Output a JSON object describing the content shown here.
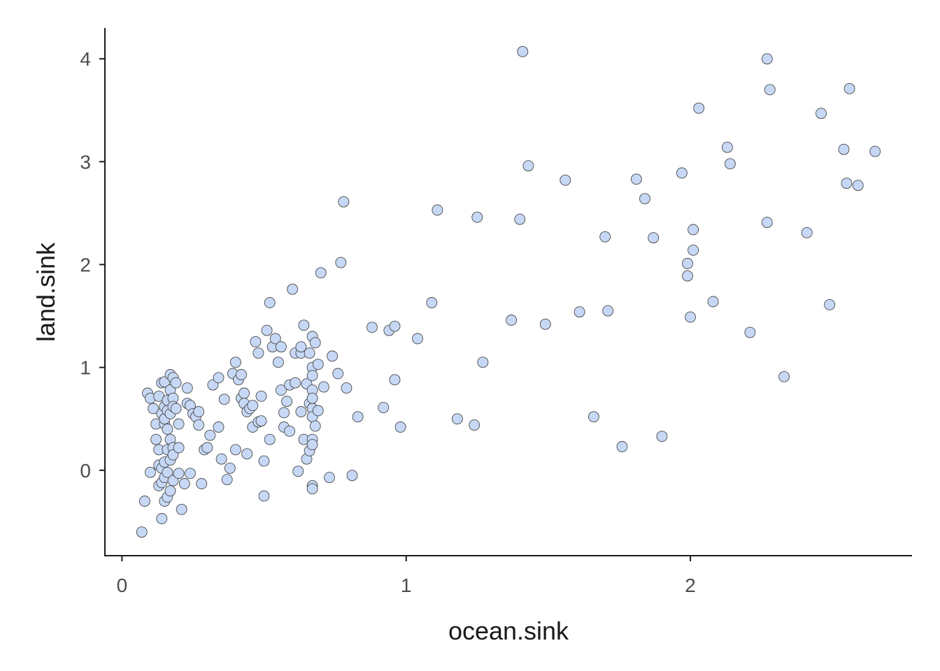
{
  "chart_data": {
    "type": "scatter",
    "title": "",
    "xlabel": "ocean.sink",
    "ylabel": "land.sink",
    "xlim": [
      -0.06,
      2.78
    ],
    "ylim": [
      -0.83,
      4.3
    ],
    "xticks": [
      0,
      1,
      2
    ],
    "yticks": [
      0,
      1,
      2,
      3,
      4
    ],
    "grid": false,
    "point_color": "#c6d8f5",
    "point_stroke": "#4a4a4a",
    "axis_color": "#1a1a1a",
    "points": [
      [
        0.07,
        -0.6
      ],
      [
        0.08,
        -0.3
      ],
      [
        0.09,
        0.75
      ],
      [
        0.1,
        -0.02
      ],
      [
        0.1,
        0.7
      ],
      [
        0.11,
        0.6
      ],
      [
        0.12,
        0.45
      ],
      [
        0.12,
        0.3
      ],
      [
        0.13,
        0.2
      ],
      [
        0.13,
        0.05
      ],
      [
        0.13,
        -0.15
      ],
      [
        0.13,
        0.72
      ],
      [
        0.14,
        0.85
      ],
      [
        0.14,
        0.55
      ],
      [
        0.14,
        -0.12
      ],
      [
        0.14,
        0.02
      ],
      [
        0.14,
        -0.47
      ],
      [
        0.15,
        0.86
      ],
      [
        0.15,
        0.62
      ],
      [
        0.15,
        0.45
      ],
      [
        0.15,
        0.08
      ],
      [
        0.15,
        -0.07
      ],
      [
        0.15,
        -0.3
      ],
      [
        0.15,
        0.5
      ],
      [
        0.16,
        0.68
      ],
      [
        0.16,
        0.58
      ],
      [
        0.16,
        0.4
      ],
      [
        0.16,
        0.2
      ],
      [
        0.16,
        -0.02
      ],
      [
        0.16,
        -0.26
      ],
      [
        0.17,
        0.93
      ],
      [
        0.17,
        0.78
      ],
      [
        0.17,
        0.55
      ],
      [
        0.17,
        0.3
      ],
      [
        0.17,
        0.1
      ],
      [
        0.17,
        -0.2
      ],
      [
        0.18,
        0.9
      ],
      [
        0.18,
        0.7
      ],
      [
        0.18,
        0.62
      ],
      [
        0.18,
        0.22
      ],
      [
        0.18,
        0.15
      ],
      [
        0.18,
        -0.1
      ],
      [
        0.19,
        0.85
      ],
      [
        0.19,
        0.6
      ],
      [
        0.2,
        0.45
      ],
      [
        0.2,
        0.22
      ],
      [
        0.2,
        -0.03
      ],
      [
        0.21,
        -0.38
      ],
      [
        0.22,
        -0.13
      ],
      [
        0.23,
        0.8
      ],
      [
        0.23,
        0.65
      ],
      [
        0.24,
        -0.03
      ],
      [
        0.24,
        0.63
      ],
      [
        0.25,
        0.55
      ],
      [
        0.26,
        0.52
      ],
      [
        0.27,
        0.57
      ],
      [
        0.27,
        0.44
      ],
      [
        0.28,
        -0.13
      ],
      [
        0.29,
        0.2
      ],
      [
        0.3,
        0.22
      ],
      [
        0.31,
        0.34
      ],
      [
        0.32,
        0.83
      ],
      [
        0.34,
        0.9
      ],
      [
        0.34,
        0.42
      ],
      [
        0.35,
        0.11
      ],
      [
        0.36,
        0.69
      ],
      [
        0.37,
        -0.09
      ],
      [
        0.38,
        0.02
      ],
      [
        0.39,
        0.94
      ],
      [
        0.4,
        1.05
      ],
      [
        0.4,
        0.2
      ],
      [
        0.41,
        0.88
      ],
      [
        0.42,
        0.93
      ],
      [
        0.42,
        0.7
      ],
      [
        0.43,
        0.75
      ],
      [
        0.43,
        0.65
      ],
      [
        0.44,
        0.57
      ],
      [
        0.44,
        0.16
      ],
      [
        0.45,
        0.6
      ],
      [
        0.46,
        0.63
      ],
      [
        0.46,
        0.42
      ],
      [
        0.47,
        1.25
      ],
      [
        0.48,
        1.14
      ],
      [
        0.48,
        0.47
      ],
      [
        0.49,
        0.72
      ],
      [
        0.49,
        0.48
      ],
      [
        0.5,
        0.09
      ],
      [
        0.5,
        -0.25
      ],
      [
        0.51,
        1.36
      ],
      [
        0.52,
        1.63
      ],
      [
        0.52,
        0.3
      ],
      [
        0.53,
        1.2
      ],
      [
        0.54,
        1.28
      ],
      [
        0.55,
        1.05
      ],
      [
        0.56,
        1.2
      ],
      [
        0.56,
        0.78
      ],
      [
        0.57,
        0.56
      ],
      [
        0.57,
        0.42
      ],
      [
        0.58,
        0.67
      ],
      [
        0.59,
        0.83
      ],
      [
        0.59,
        0.38
      ],
      [
        0.6,
        1.76
      ],
      [
        0.61,
        1.14
      ],
      [
        0.61,
        0.85
      ],
      [
        0.62,
        -0.01
      ],
      [
        0.63,
        1.14
      ],
      [
        0.63,
        1.2
      ],
      [
        0.63,
        0.57
      ],
      [
        0.64,
        1.41
      ],
      [
        0.64,
        0.3
      ],
      [
        0.65,
        0.84
      ],
      [
        0.65,
        0.11
      ],
      [
        0.66,
        1.14
      ],
      [
        0.66,
        0.65
      ],
      [
        0.66,
        0.19
      ],
      [
        0.67,
        1.3
      ],
      [
        0.67,
        1.0
      ],
      [
        0.67,
        0.92
      ],
      [
        0.67,
        0.78
      ],
      [
        0.67,
        0.7
      ],
      [
        0.67,
        0.6
      ],
      [
        0.67,
        0.52
      ],
      [
        0.67,
        0.3
      ],
      [
        0.67,
        0.25
      ],
      [
        0.67,
        -0.15
      ],
      [
        0.67,
        -0.18
      ],
      [
        0.68,
        1.24
      ],
      [
        0.68,
        0.43
      ],
      [
        0.69,
        1.03
      ],
      [
        0.69,
        0.58
      ],
      [
        0.7,
        1.92
      ],
      [
        0.71,
        0.81
      ],
      [
        0.73,
        -0.07
      ],
      [
        0.74,
        1.11
      ],
      [
        0.76,
        0.94
      ],
      [
        0.77,
        2.02
      ],
      [
        0.78,
        2.61
      ],
      [
        0.79,
        0.8
      ],
      [
        0.81,
        -0.05
      ],
      [
        0.83,
        0.52
      ],
      [
        0.88,
        1.39
      ],
      [
        0.92,
        0.61
      ],
      [
        0.94,
        1.36
      ],
      [
        0.96,
        1.4
      ],
      [
        0.96,
        0.88
      ],
      [
        0.98,
        0.42
      ],
      [
        1.04,
        1.28
      ],
      [
        1.09,
        1.63
      ],
      [
        1.11,
        2.53
      ],
      [
        1.18,
        0.5
      ],
      [
        1.24,
        0.44
      ],
      [
        1.25,
        2.46
      ],
      [
        1.27,
        1.05
      ],
      [
        1.37,
        1.46
      ],
      [
        1.4,
        2.44
      ],
      [
        1.41,
        4.07
      ],
      [
        1.43,
        2.96
      ],
      [
        1.49,
        1.42
      ],
      [
        1.56,
        2.82
      ],
      [
        1.61,
        1.54
      ],
      [
        1.66,
        0.52
      ],
      [
        1.7,
        2.27
      ],
      [
        1.71,
        1.55
      ],
      [
        1.76,
        0.23
      ],
      [
        1.81,
        2.83
      ],
      [
        1.84,
        2.64
      ],
      [
        1.87,
        2.26
      ],
      [
        1.9,
        0.33
      ],
      [
        1.97,
        2.89
      ],
      [
        1.99,
        2.01
      ],
      [
        1.99,
        1.89
      ],
      [
        2.0,
        1.49
      ],
      [
        2.01,
        2.34
      ],
      [
        2.01,
        2.14
      ],
      [
        2.03,
        3.52
      ],
      [
        2.08,
        1.64
      ],
      [
        2.13,
        3.14
      ],
      [
        2.14,
        2.98
      ],
      [
        2.21,
        1.34
      ],
      [
        2.27,
        4.0
      ],
      [
        2.27,
        2.41
      ],
      [
        2.28,
        3.7
      ],
      [
        2.33,
        0.91
      ],
      [
        2.41,
        2.31
      ],
      [
        2.46,
        3.47
      ],
      [
        2.49,
        1.61
      ],
      [
        2.54,
        3.12
      ],
      [
        2.55,
        2.79
      ],
      [
        2.56,
        3.71
      ],
      [
        2.59,
        2.77
      ],
      [
        2.65,
        3.1
      ]
    ]
  }
}
